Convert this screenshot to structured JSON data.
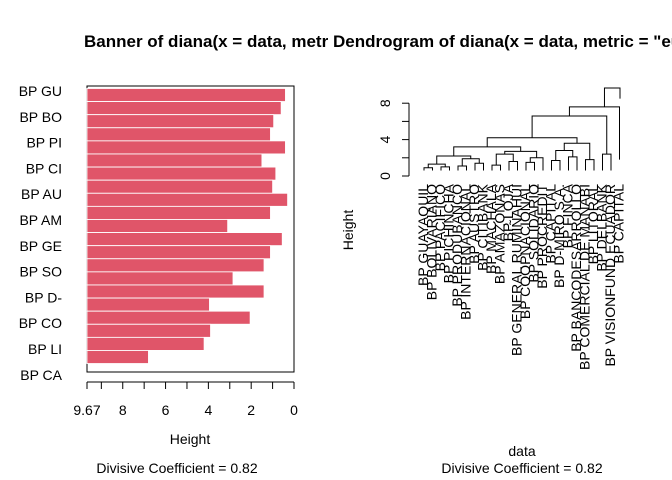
{
  "page_title": "Banner of  diana(x = data, metric = \"euclidean\")",
  "right_title": "Dendrogram of  diana(x = data, metric = \"euclidean\")",
  "chart_data": [
    {
      "type": "bar",
      "orientation": "horizontal-banner",
      "xlabel": "Height",
      "subtitle": "Divisive Coefficient =  0.82",
      "xlim": [
        9.67,
        0
      ],
      "x_ticks": [
        "9.67",
        "8",
        "6",
        "4",
        "2",
        "0"
      ],
      "row_labels": [
        "BP GU",
        "BP BO",
        "BP PI",
        "BP CI",
        "BP AU",
        "BP AM",
        "BP GE",
        "BP SO",
        "BP D-",
        "BP CO",
        "BP LI",
        "BP CA"
      ],
      "values": [
        0.4,
        0.6,
        0.95,
        1.1,
        0.4,
        1.5,
        0.85,
        1.0,
        0.3,
        1.1,
        3.1,
        0.55,
        1.1,
        1.4,
        2.85,
        1.4,
        3.95,
        2.05,
        3.9,
        4.2,
        6.8
      ]
    },
    {
      "type": "dendrogram",
      "xlabel": "data",
      "ylabel": "Height",
      "subtitle": "Divisive Coefficient =  0.82",
      "ylim": [
        0,
        9.67
      ],
      "y_ticks": [
        "0",
        "4",
        "8"
      ],
      "leaves": [
        "BP GUAYAQUIL",
        "BP BOLIVARIANO",
        "BP PACIFICO",
        "BP PICHINCHA",
        "BP PRODUBANCO",
        "BP INTERNACIONAL",
        "BP AUSTRO",
        "BP CITIBANK",
        "BP MACHALA",
        "BP AMAZONAS",
        "BP LOJA",
        "BP GENERAL RUMIÑAHUI",
        "BP COOPNACIONAL",
        "BP SOLIDARIO",
        "BP PROCREDIT",
        "BP CAPITAL",
        "BP D-MIRO S.A.",
        "BP FINCA",
        "BP BANCODESARROLLO",
        "BP COMERCIAL DE MANABI",
        "BP LITORAL",
        "BP DELBANK",
        "BP VISIONFUND ECUADOR",
        "BP CAPITAL"
      ]
    }
  ]
}
